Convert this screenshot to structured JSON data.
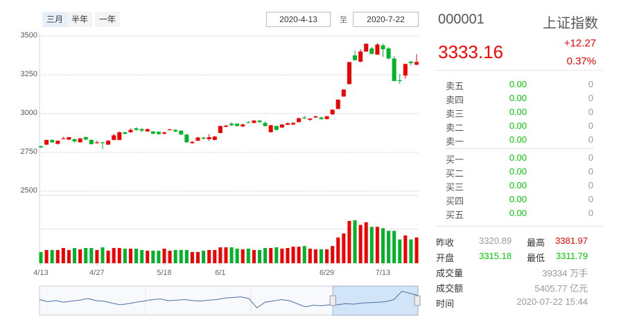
{
  "range_buttons": [
    {
      "label": "三月",
      "active": true
    },
    {
      "label": "半年",
      "active": false
    },
    {
      "label": "一年",
      "active": false
    }
  ],
  "date_from": "2020-4-13",
  "date_sep": "至",
  "date_to": "2020-7-22",
  "y_ticks": [
    "3500",
    "3250",
    "3000",
    "2750",
    "2500"
  ],
  "x_ticks": [
    "4/13",
    "4/27",
    "5/18",
    "6/1",
    "6/29",
    "7/13"
  ],
  "colors": {
    "up": "#f00000",
    "down": "#00b42a",
    "grid": "#ccc",
    "nav_fill": "#cfe2f8"
  },
  "chart_data": {
    "type": "candlestick",
    "ylim": [
      2500,
      3500
    ],
    "yticks": [
      3500,
      3250,
      3000,
      2750,
      2500
    ],
    "xticks": [
      {
        "label": "4/13",
        "index": 0
      },
      {
        "label": "4/27",
        "index": 10
      },
      {
        "label": "5/18",
        "index": 22
      },
      {
        "label": "6/1",
        "index": 32
      },
      {
        "label": "6/29",
        "index": 51
      },
      {
        "label": "7/13",
        "index": 61
      }
    ],
    "ohlc_note": "[open, close, high, low]",
    "candles": [
      [
        2790,
        2783,
        2795,
        2775
      ],
      [
        2800,
        2830,
        2832,
        2798
      ],
      [
        2830,
        2815,
        2835,
        2810
      ],
      [
        2805,
        2825,
        2828,
        2800
      ],
      [
        2838,
        2840,
        2850,
        2836
      ],
      [
        2832,
        2848,
        2850,
        2830
      ],
      [
        2835,
        2820,
        2840,
        2812
      ],
      [
        2815,
        2840,
        2842,
        2812
      ],
      [
        2848,
        2833,
        2852,
        2828
      ],
      [
        2830,
        2803,
        2835,
        2800
      ],
      [
        2810,
        2815,
        2825,
        2806
      ],
      [
        2815,
        2812,
        2818,
        2770
      ],
      [
        2800,
        2825,
        2830,
        2798
      ],
      [
        2830,
        2860,
        2870,
        2828
      ],
      [
        2830,
        2880,
        2885,
        2828
      ],
      [
        2880,
        2870,
        2882,
        2866
      ],
      [
        2880,
        2895,
        2905,
        2875
      ],
      [
        2905,
        2895,
        2912,
        2888
      ],
      [
        2900,
        2890,
        2905,
        2880
      ],
      [
        2885,
        2900,
        2903,
        2882
      ],
      [
        2885,
        2870,
        2888,
        2868
      ],
      [
        2883,
        2868,
        2886,
        2865
      ],
      [
        2870,
        2878,
        2885,
        2865
      ],
      [
        2895,
        2898,
        2902,
        2894
      ],
      [
        2895,
        2885,
        2900,
        2880
      ],
      [
        2890,
        2865,
        2892,
        2862
      ],
      [
        2865,
        2815,
        2867,
        2812
      ],
      [
        2810,
        2818,
        2822,
        2806
      ],
      [
        2825,
        2846,
        2850,
        2823
      ],
      [
        2845,
        2838,
        2850,
        2834
      ],
      [
        2835,
        2848,
        2868,
        2825
      ],
      [
        2830,
        2852,
        2855,
        2828
      ],
      [
        2875,
        2920,
        2922,
        2872
      ],
      [
        2915,
        2922,
        2928,
        2910
      ],
      [
        2935,
        2925,
        2945,
        2920
      ],
      [
        2935,
        2920,
        2938,
        2917
      ],
      [
        2918,
        2930,
        2935,
        2912
      ],
      [
        2945,
        2940,
        2950,
        2938
      ],
      [
        2940,
        2955,
        2958,
        2938
      ],
      [
        2955,
        2945,
        2958,
        2940
      ],
      [
        2940,
        2920,
        2950,
        2915
      ],
      [
        2880,
        2925,
        2928,
        2878
      ],
      [
        2920,
        2895,
        2925,
        2890
      ],
      [
        2910,
        2930,
        2932,
        2908
      ],
      [
        2928,
        2938,
        2942,
        2925
      ],
      [
        2930,
        2940,
        2945,
        2926
      ],
      [
        2945,
        2970,
        2975,
        2943
      ],
      [
        2975,
        2970,
        2985,
        2965
      ],
      [
        2960,
        2968,
        2970,
        2952
      ],
      [
        2975,
        2982,
        2986,
        2972
      ],
      [
        2975,
        2965,
        2980,
        2960
      ],
      [
        2965,
        2983,
        2985,
        2962
      ],
      [
        2995,
        3025,
        3028,
        2992
      ],
      [
        3030,
        3090,
        3092,
        3028
      ],
      [
        3110,
        3155,
        3157,
        3108
      ],
      [
        3190,
        3332,
        3334,
        3188
      ],
      [
        3375,
        3345,
        3405,
        3340
      ],
      [
        3335,
        3400,
        3415,
        3330
      ],
      [
        3400,
        3450,
        3453,
        3398
      ],
      [
        3420,
        3385,
        3430,
        3380
      ],
      [
        3380,
        3445,
        3455,
        3378
      ],
      [
        3440,
        3415,
        3450,
        3365
      ],
      [
        3420,
        3355,
        3428,
        3350
      ],
      [
        3355,
        3210,
        3370,
        3208
      ],
      [
        3215,
        3212,
        3255,
        3190
      ],
      [
        3245,
        3320,
        3322,
        3225
      ],
      [
        3335,
        3325,
        3340,
        3310
      ],
      [
        3315,
        3333,
        3382,
        3312
      ]
    ],
    "volumes": [
      1700,
      2000,
      2000,
      2000,
      2300,
      2000,
      2300,
      2100,
      2300,
      2300,
      2000,
      2400,
      1900,
      2300,
      2300,
      2200,
      2200,
      2200,
      2000,
      1900,
      1900,
      1900,
      2200,
      1900,
      2000,
      2000,
      2000,
      1700,
      1700,
      1900,
      2000,
      2000,
      2400,
      2400,
      2400,
      2200,
      2100,
      2200,
      2000,
      2000,
      2300,
      2300,
      2400,
      2200,
      2300,
      2500,
      2500,
      2600,
      2200,
      2100,
      2100,
      2100,
      2600,
      3900,
      4500,
      6400,
      6500,
      5800,
      6200,
      5500,
      5500,
      5300,
      4900,
      4900,
      3600,
      4200,
      3600,
      3900
    ]
  },
  "navigator": {
    "series": [
      0.55,
      0.45,
      0.5,
      0.42,
      0.48,
      0.52,
      0.6,
      0.5,
      0.47,
      0.38,
      0.3,
      0.35,
      0.42,
      0.48,
      0.55,
      0.58,
      0.5,
      0.52,
      0.55,
      0.5,
      0.48,
      0.52,
      0.55,
      0.62,
      0.65,
      0.68,
      0.6,
      0.15,
      0.42,
      0.48,
      0.55,
      0.5,
      0.35,
      0.2,
      0.28,
      0.25,
      0.3,
      0.3,
      0.35,
      0.33,
      0.38,
      0.4,
      0.42,
      0.45,
      0.55,
      0.95,
      0.85,
      0.75
    ],
    "window_start": 0.775
  },
  "quote": {
    "code": "000001",
    "name": "上证指数",
    "price": "3333.16",
    "change": "+12.27",
    "change_pct": "0.37%"
  },
  "asks": [
    {
      "label": "卖五",
      "price": "0.00",
      "vol": "0"
    },
    {
      "label": "卖四",
      "price": "0.00",
      "vol": "0"
    },
    {
      "label": "卖三",
      "price": "0.00",
      "vol": "0"
    },
    {
      "label": "卖二",
      "price": "0.00",
      "vol": "0"
    },
    {
      "label": "卖一",
      "price": "0.00",
      "vol": "0"
    }
  ],
  "bids": [
    {
      "label": "买一",
      "price": "0.00",
      "vol": "0"
    },
    {
      "label": "买二",
      "price": "0.00",
      "vol": "0"
    },
    {
      "label": "买三",
      "price": "0.00",
      "vol": "0"
    },
    {
      "label": "买四",
      "price": "0.00",
      "vol": "0"
    },
    {
      "label": "买五",
      "price": "0.00",
      "vol": "0"
    }
  ],
  "stats": {
    "prev_close_label": "昨收",
    "prev_close": "3320.89",
    "high_label": "最高",
    "high": "3381.97",
    "open_label": "开盘",
    "open": "3315.18",
    "low_label": "最低",
    "low": "3311.79",
    "volume_label": "成交量",
    "volume": "39334 万手",
    "amount_label": "成交额",
    "amount": "5405.77 亿元",
    "time_label": "时间",
    "time": "2020-07-22 15:44"
  }
}
